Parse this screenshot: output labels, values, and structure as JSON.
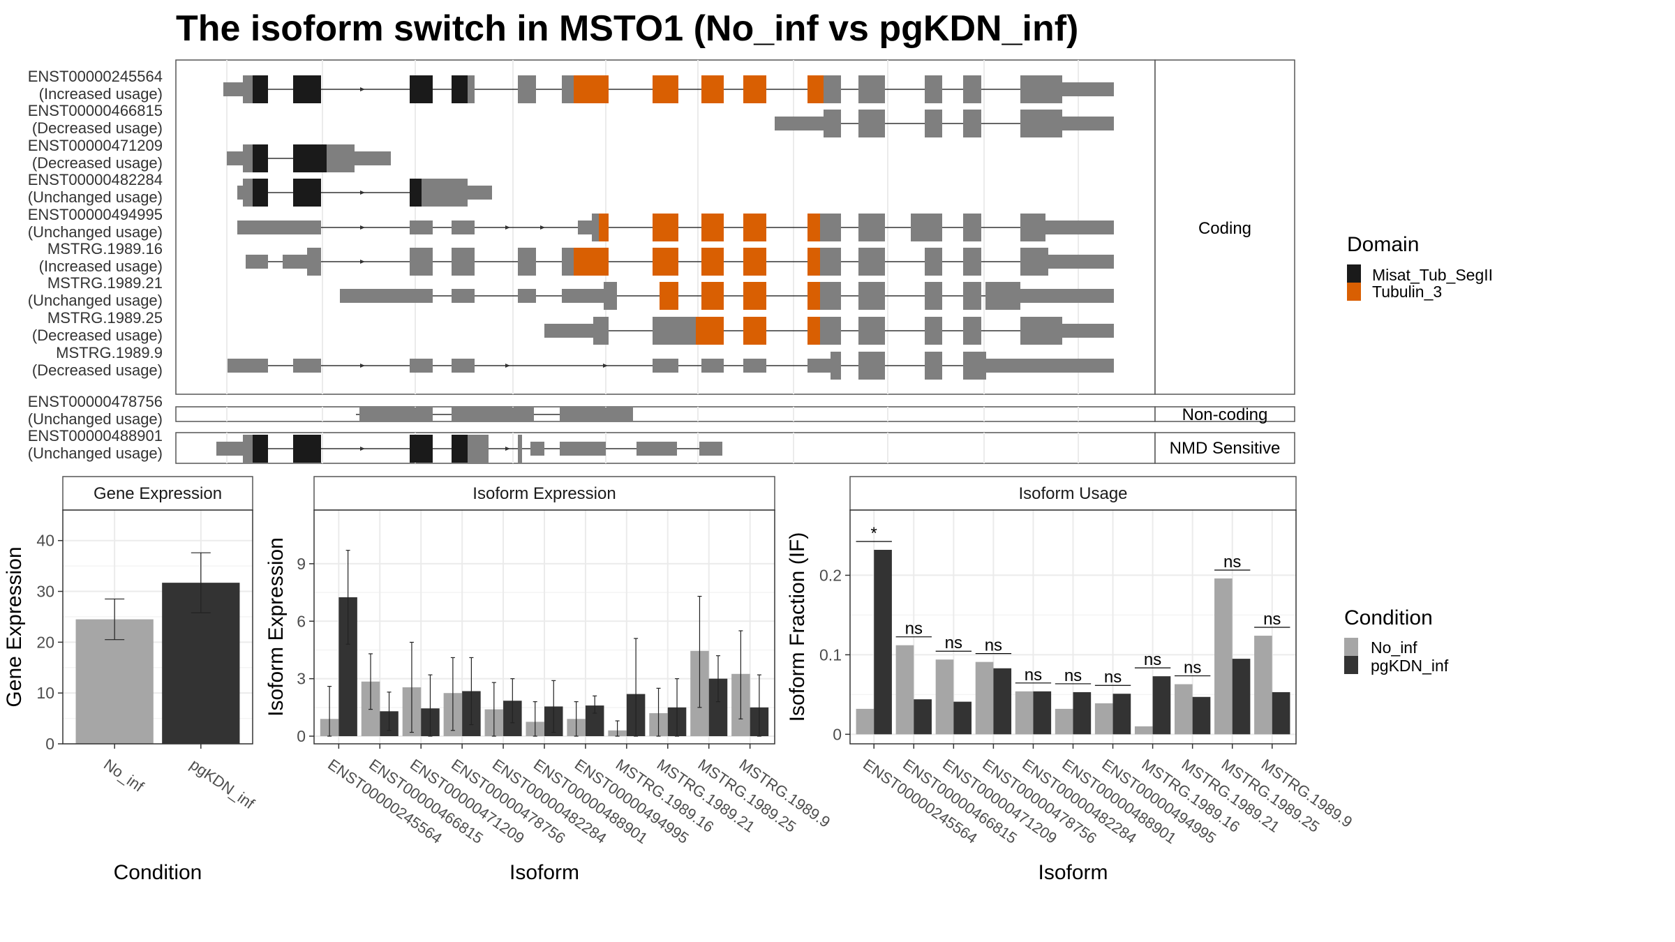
{
  "title": "The isoform switch in MSTO1 (No_inf vs pgKDN_inf)",
  "colors": {
    "domain_black": "#1a1a1a",
    "domain_orange": "#d95f02",
    "exon_gray": "#7f7f7f",
    "bar_no_inf": "#a6a6a6",
    "bar_pgkdn": "#333333"
  },
  "chart_data": [
    {
      "type": "gene-structure",
      "panels": [
        {
          "strip": "Coding",
          "isoforms": [
            {
              "id": "ENST00000245564",
              "usage": "(Increased usage)"
            },
            {
              "id": "ENST00000466815",
              "usage": "(Decreased usage)"
            },
            {
              "id": "ENST00000471209",
              "usage": "(Decreased usage)"
            },
            {
              "id": "ENST00000482284",
              "usage": "(Unchanged usage)"
            },
            {
              "id": "ENST00000494995",
              "usage": "(Unchanged usage)"
            },
            {
              "id": "MSTRG.1989.16",
              "usage": "(Increased usage)"
            },
            {
              "id": "MSTRG.1989.21",
              "usage": "(Unchanged usage)"
            },
            {
              "id": "MSTRG.1989.25",
              "usage": "(Decreased usage)"
            },
            {
              "id": "MSTRG.1989.9",
              "usage": "(Decreased usage)"
            }
          ]
        },
        {
          "strip": "Non-coding",
          "isoforms": [
            {
              "id": "ENST00000478756",
              "usage": "(Unchanged usage)"
            }
          ]
        },
        {
          "strip": "NMD Sensitive",
          "isoforms": [
            {
              "id": "ENST00000488901",
              "usage": "(Unchanged usage)"
            }
          ]
        }
      ],
      "legend": {
        "title": "Domain",
        "entries": [
          {
            "name": "Misat_Tub_SegII",
            "color": "#1a1a1a"
          },
          {
            "name": "Tubulin_3",
            "color": "#d95f02"
          }
        ]
      }
    },
    {
      "type": "bar",
      "strip": "Gene Expression",
      "xlabel": "Condition",
      "ylabel": "Gene Expression",
      "categories": [
        "No_inf",
        "pgKDN_inf"
      ],
      "values": [
        24.5,
        31.7
      ],
      "errors": [
        [
          20.5,
          28.5
        ],
        [
          25.8,
          37.6
        ]
      ],
      "yticks": [
        0,
        10,
        20,
        30,
        40
      ],
      "ylim": [
        0,
        46
      ]
    },
    {
      "type": "bar",
      "strip": "Isoform Expression",
      "xlabel": "Isoform",
      "ylabel": "Isoform Expression",
      "categories": [
        "ENST00000245564",
        "ENST00000466815",
        "ENST00000471209",
        "ENST00000478756",
        "ENST00000482284",
        "ENST00000488901",
        "ENST00000494995",
        "MSTRG.1989.16",
        "MSTRG.1989.21",
        "MSTRG.1989.25",
        "MSTRG.1989.9"
      ],
      "series": [
        {
          "name": "No_inf",
          "values": [
            0.9,
            2.85,
            2.55,
            2.25,
            1.4,
            0.75,
            0.9,
            0.3,
            1.2,
            4.45,
            3.25
          ],
          "errors": [
            [
              0,
              2.6
            ],
            [
              1.4,
              4.3
            ],
            [
              0.2,
              4.9
            ],
            [
              0.3,
              4.1
            ],
            [
              0,
              2.8
            ],
            [
              0,
              1.8
            ],
            [
              0,
              1.8
            ],
            [
              0,
              0.8
            ],
            [
              0,
              2.5
            ],
            [
              1.5,
              7.3
            ],
            [
              0.9,
              5.5
            ]
          ]
        },
        {
          "name": "pgKDN_inf",
          "values": [
            7.25,
            1.3,
            1.45,
            2.35,
            1.85,
            1.55,
            1.6,
            2.2,
            1.5,
            3.0,
            1.5
          ],
          "errors": [
            [
              4.8,
              9.7
            ],
            [
              0.3,
              2.3
            ],
            [
              0,
              3.2
            ],
            [
              0.6,
              4.1
            ],
            [
              0.7,
              3.0
            ],
            [
              0.2,
              2.9
            ],
            [
              1.2,
              2.1
            ],
            [
              0,
              5.1
            ],
            [
              0,
              3.0
            ],
            [
              1.8,
              4.2
            ],
            [
              0,
              3.2
            ]
          ]
        }
      ],
      "yticks": [
        0,
        3,
        6,
        9
      ],
      "ylim": [
        -0.4,
        11.8
      ]
    },
    {
      "type": "bar",
      "strip": "Isoform Usage",
      "xlabel": "Isoform",
      "ylabel": "Isoform Fraction (IF)",
      "categories": [
        "ENST00000245564",
        "ENST00000466815",
        "ENST00000471209",
        "ENST00000478756",
        "ENST00000482284",
        "ENST00000488901",
        "ENST00000494995",
        "MSTRG.1989.16",
        "MSTRG.1989.21",
        "MSTRG.1989.25",
        "MSTRG.1989.9"
      ],
      "series": [
        {
          "name": "No_inf",
          "values": [
            0.032,
            0.112,
            0.094,
            0.091,
            0.054,
            0.032,
            0.039,
            0.01,
            0.063,
            0.196,
            0.124
          ]
        },
        {
          "name": "pgKDN_inf",
          "values": [
            0.232,
            0.044,
            0.041,
            0.083,
            0.054,
            0.053,
            0.051,
            0.073,
            0.047,
            0.095,
            0.053
          ]
        }
      ],
      "significance": [
        "*",
        "ns",
        "ns",
        "ns",
        "ns",
        "ns",
        "ns",
        "ns",
        "ns",
        "ns",
        "ns"
      ],
      "yticks": [
        0.0,
        0.1,
        0.2
      ],
      "ylim": [
        -0.012,
        0.282
      ]
    }
  ],
  "condition_legend": {
    "title": "Condition",
    "entries": [
      {
        "name": "No_inf",
        "color": "#a6a6a6"
      },
      {
        "name": "pgKDN_inf",
        "color": "#333333"
      }
    ]
  }
}
